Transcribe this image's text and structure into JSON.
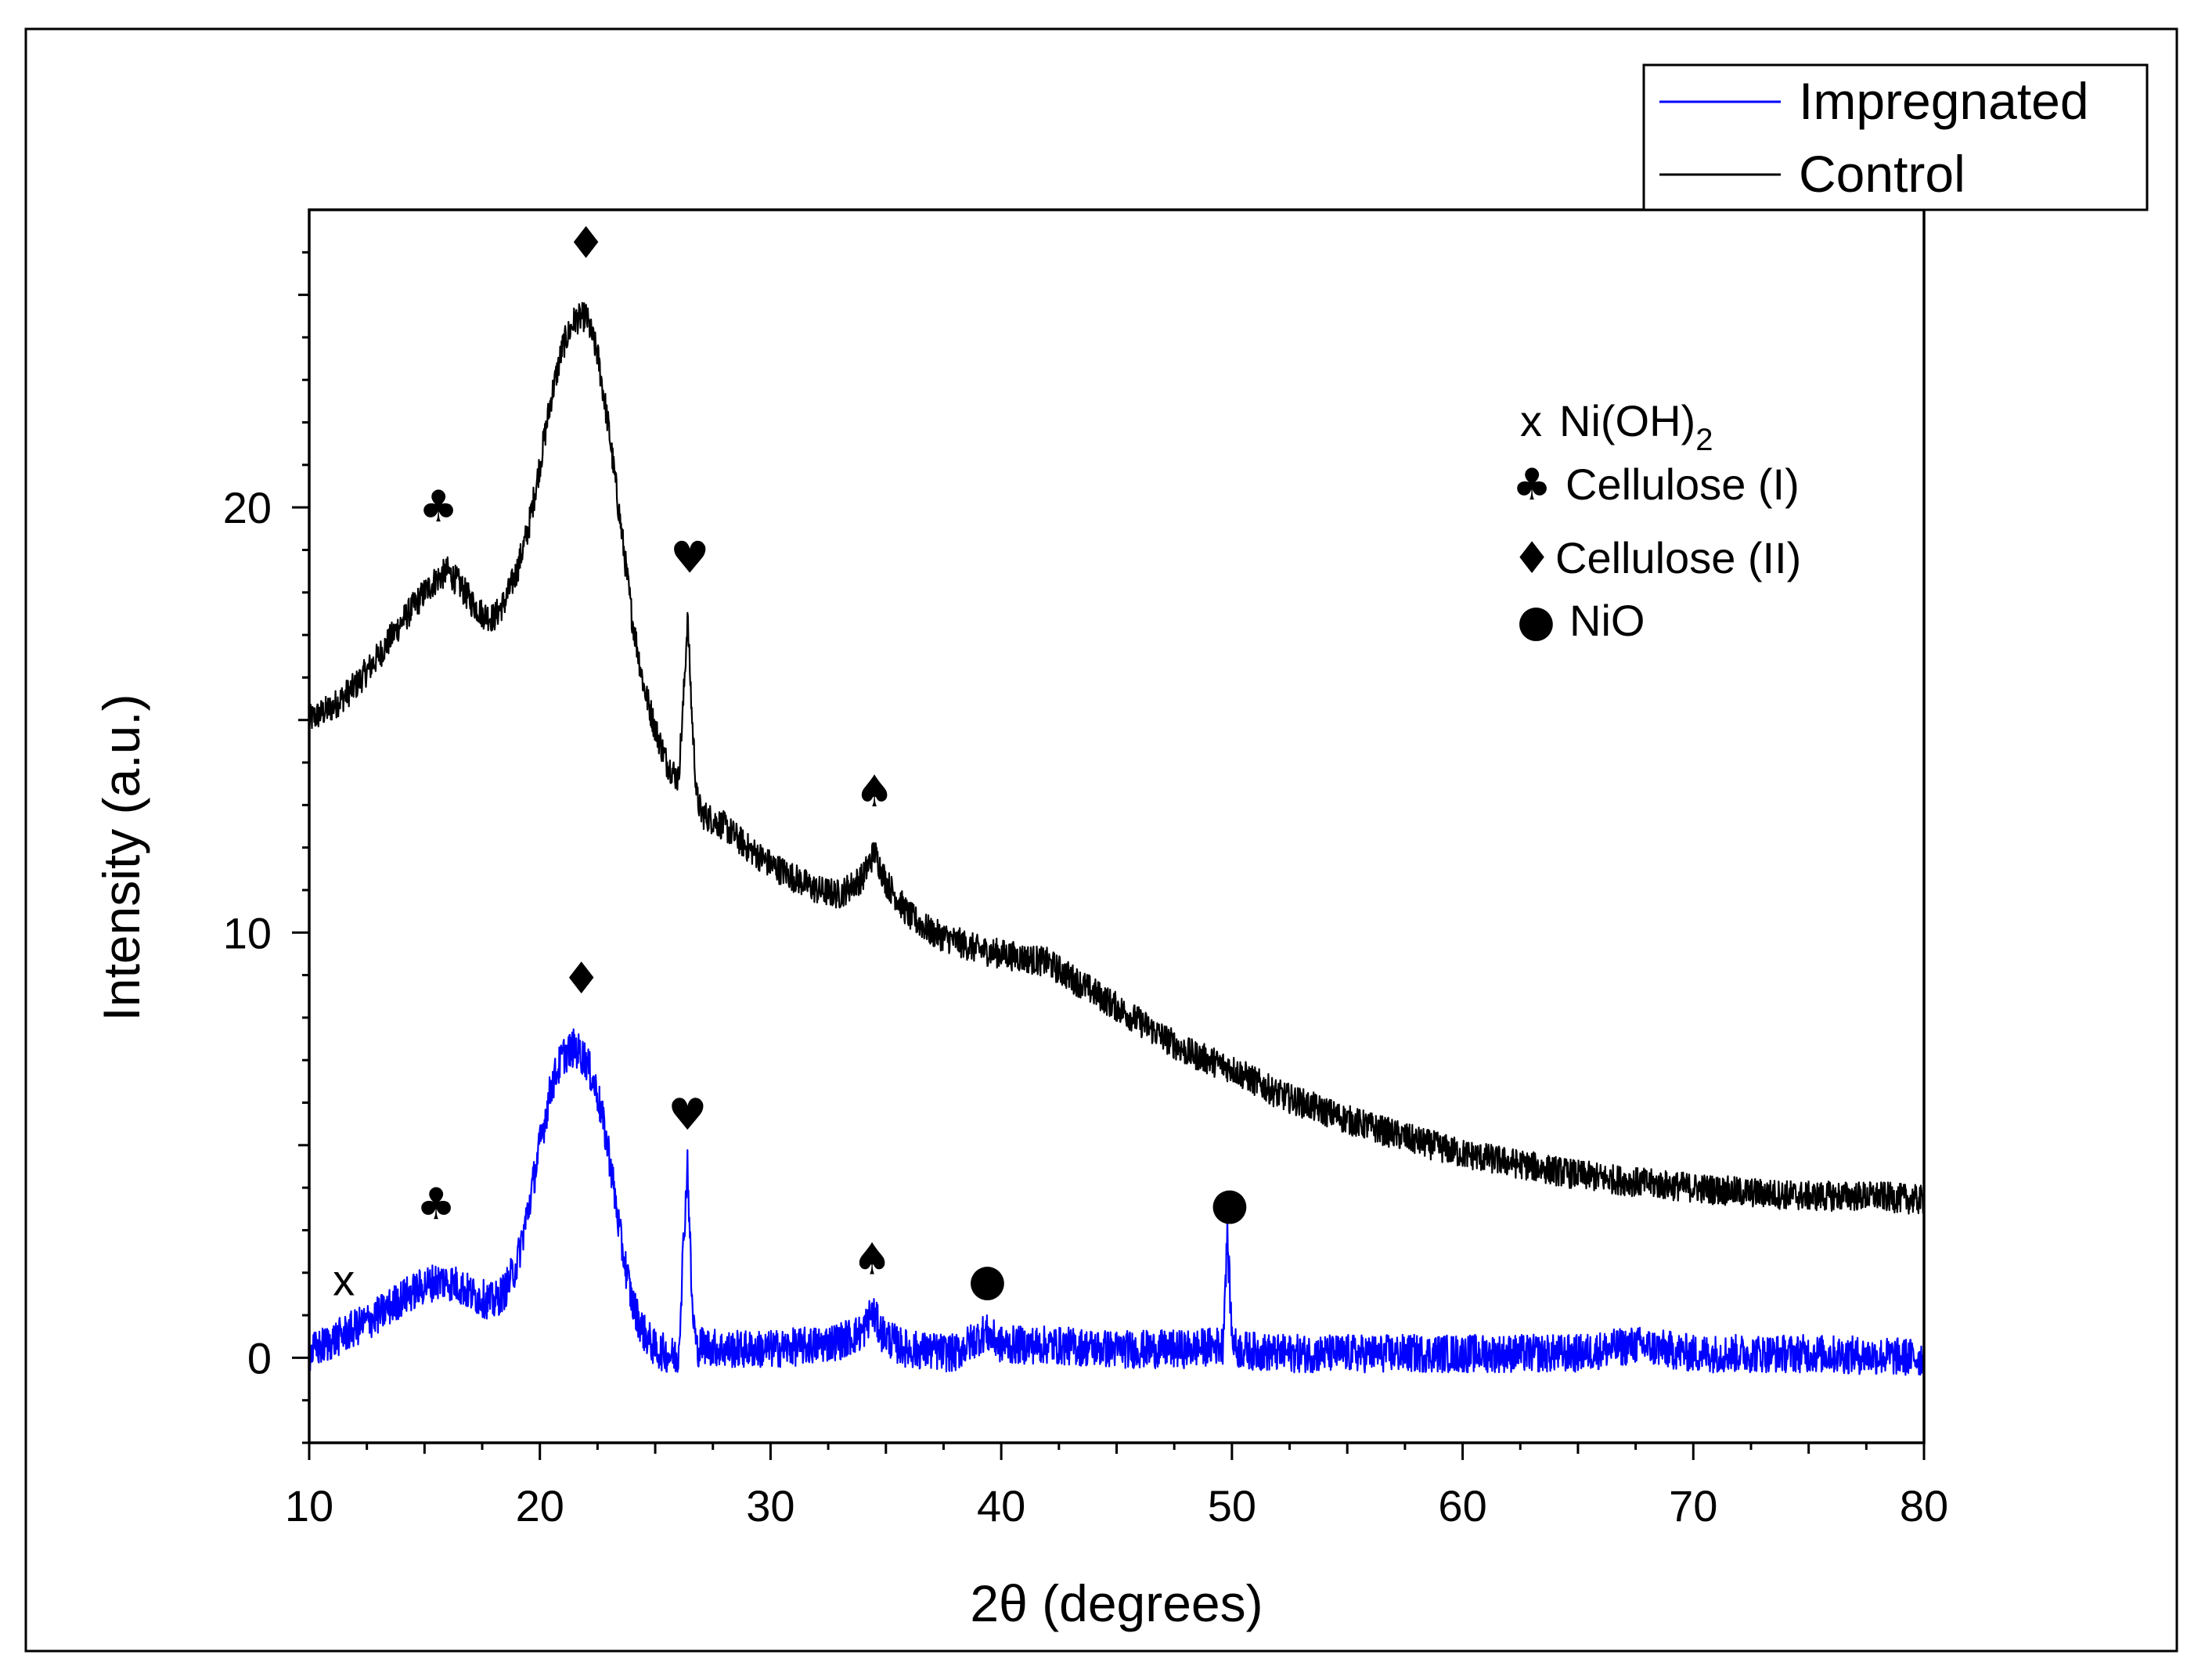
{
  "chart_data": {
    "type": "line",
    "title": "",
    "xlabel": "2θ (degrees)",
    "ylabel": "Intensity (a.u.)",
    "xlim": [
      10,
      80
    ],
    "ylim": [
      -2,
      27
    ],
    "xticks": [
      10,
      20,
      30,
      40,
      50,
      60,
      70,
      80
    ],
    "yticks": [
      0,
      10,
      20
    ],
    "grid": false,
    "legend_position": "top-right",
    "legend": [
      {
        "name": "Impregnated",
        "color": "#0000ff"
      },
      {
        "name": "Control",
        "color": "#000000"
      }
    ],
    "series": [
      {
        "name": "Control",
        "color": "#000000",
        "noise": 0.35,
        "x": [
          10,
          11,
          12,
          13,
          14,
          15,
          15.5,
          16,
          16.5,
          17,
          17.5,
          18,
          18.5,
          19,
          19.5,
          20,
          20.5,
          21,
          21.5,
          22,
          22.5,
          23,
          23.5,
          24,
          24.5,
          25,
          25.5,
          26,
          26.2,
          26.4,
          26.6,
          26.8,
          27,
          28,
          29,
          30,
          31,
          32,
          33,
          34,
          34.5,
          35,
          36,
          37,
          38,
          39,
          40,
          42,
          44,
          46,
          48,
          49.5,
          50,
          52,
          55,
          58,
          60,
          62,
          65,
          68,
          70,
          72,
          75,
          78,
          80
        ],
        "y": [
          15.0,
          15.3,
          15.8,
          16.5,
          17.3,
          18.0,
          18.3,
          18.5,
          18.2,
          17.8,
          17.5,
          17.4,
          17.8,
          18.5,
          19.5,
          21.0,
          22.6,
          23.8,
          24.4,
          24.5,
          23.6,
          21.8,
          19.6,
          17.4,
          15.8,
          14.8,
          14.0,
          13.6,
          15.2,
          17.4,
          15.0,
          13.2,
          12.8,
          12.5,
          12.0,
          11.6,
          11.3,
          11.0,
          10.9,
          11.3,
          11.9,
          11.2,
          10.4,
          10.0,
          9.8,
          9.6,
          9.5,
          9.3,
          8.6,
          7.9,
          7.2,
          6.9,
          6.8,
          6.2,
          5.6,
          5.1,
          4.8,
          4.6,
          4.3,
          4.1,
          4.0,
          3.9,
          3.8,
          3.8,
          3.7
        ]
      },
      {
        "name": "Impregnated",
        "color": "#0000ff",
        "noise": 0.45,
        "x": [
          10,
          11,
          12,
          13,
          14,
          15,
          15.5,
          16,
          16.5,
          17,
          17.5,
          18,
          18.5,
          19,
          19.5,
          20,
          20.5,
          21,
          21.5,
          22,
          22.5,
          23,
          23.5,
          24,
          24.5,
          25,
          25.5,
          26,
          26.2,
          26.4,
          26.6,
          26.8,
          27,
          28,
          30,
          32,
          33,
          34,
          34.4,
          34.8,
          35.5,
          36,
          38,
          39.3,
          40,
          42,
          45,
          48,
          49.6,
          49.8,
          50.0,
          50.2,
          52,
          55,
          60,
          65,
          67.5,
          70,
          75,
          80
        ],
        "y": [
          0.1,
          0.4,
          0.7,
          1.0,
          1.4,
          1.7,
          1.8,
          1.8,
          1.7,
          1.5,
          1.4,
          1.3,
          1.6,
          2.2,
          3.5,
          5.0,
          6.4,
          7.1,
          7.3,
          7.0,
          6.2,
          4.8,
          2.8,
          1.3,
          0.6,
          0.2,
          0.1,
          0.0,
          2.4,
          4.6,
          1.2,
          0.2,
          0.3,
          0.2,
          0.2,
          0.3,
          0.4,
          0.6,
          1.1,
          0.6,
          0.3,
          0.2,
          0.1,
          0.6,
          0.3,
          0.3,
          0.2,
          0.2,
          0.3,
          2.9,
          0.5,
          0.2,
          0.1,
          0.1,
          0.1,
          0.1,
          0.3,
          0.1,
          0.1,
          0.0
        ]
      }
    ],
    "peak_markers": [
      {
        "series": "Control",
        "symbol": "♣",
        "x": 15.6,
        "y": 20.0
      },
      {
        "series": "Control",
        "symbol": "♦",
        "x": 22.0,
        "y": 26.2
      },
      {
        "series": "Control",
        "symbol": "♥",
        "x": 26.5,
        "y": 18.8
      },
      {
        "series": "Control",
        "symbol": "♠",
        "x": 34.5,
        "y": 13.3
      },
      {
        "series": "Impregnated",
        "symbol": "x",
        "x": 11.5,
        "y": 1.8
      },
      {
        "series": "Impregnated",
        "symbol": "♣",
        "x": 15.5,
        "y": 3.6
      },
      {
        "series": "Impregnated",
        "symbol": "♦",
        "x": 21.8,
        "y": 8.9
      },
      {
        "series": "Impregnated",
        "symbol": "♥",
        "x": 26.4,
        "y": 5.7
      },
      {
        "series": "Impregnated",
        "symbol": "♠",
        "x": 34.4,
        "y": 2.3
      },
      {
        "series": "Impregnated",
        "symbol": "●",
        "x": 39.4,
        "y": 1.7
      },
      {
        "series": "Impregnated",
        "symbol": "●",
        "x": 49.9,
        "y": 3.5
      }
    ],
    "phase_key": [
      {
        "symbol": "x",
        "label": "Ni(OH)",
        "subscript": "2"
      },
      {
        "symbol": "♣",
        "label": "Cellulose (I)"
      },
      {
        "symbol": "♦",
        "label": "Cellulose (II)"
      },
      {
        "symbol": "●",
        "label": "NiO"
      }
    ]
  }
}
